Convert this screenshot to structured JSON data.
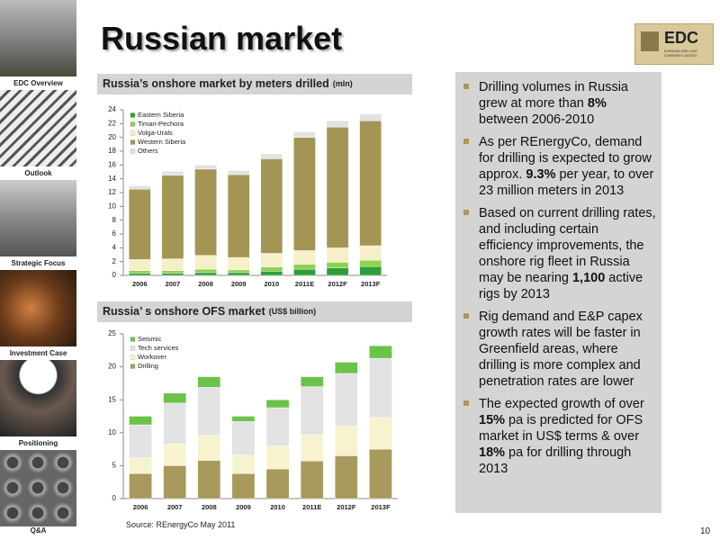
{
  "sidebar": [
    "EDC Overview",
    "Outlook",
    "Strategic Focus",
    "Investment Case",
    "Positioning",
    "Q&A"
  ],
  "title": "Russian market",
  "logo": {
    "name": "EDC",
    "tagline": "EURASIA DRILLING COMPANY LIMITED"
  },
  "chart_data": [
    {
      "type": "stacked_bar",
      "title": "Russia’s onshore market by meters drilled",
      "unit": "(mln)",
      "categories": [
        "2006",
        "2007",
        "2008",
        "2009",
        "2010",
        "2011E",
        "2012F",
        "2013F"
      ],
      "series": [
        {
          "name": "Eastern Siberia",
          "color": "#2e9e3a",
          "values": [
            0.3,
            0.3,
            0.4,
            0.4,
            0.6,
            0.9,
            1.1,
            1.3
          ]
        },
        {
          "name": "Timan-Pechora",
          "color": "#8fd14f",
          "values": [
            0.4,
            0.4,
            0.5,
            0.4,
            0.6,
            0.7,
            0.8,
            0.9
          ]
        },
        {
          "name": "Volga-Urals",
          "color": "#f5f0c8",
          "values": [
            1.6,
            1.7,
            2.0,
            1.8,
            2.0,
            2.0,
            2.1,
            2.1
          ]
        },
        {
          "name": "Western Siberia",
          "color": "#a39554",
          "values": [
            10.2,
            12.1,
            12.5,
            12.0,
            13.7,
            16.4,
            17.5,
            18.1
          ]
        },
        {
          "name": "Others",
          "color": "#e2e2e2",
          "values": [
            0.5,
            0.6,
            0.6,
            0.6,
            0.7,
            0.8,
            0.9,
            1.0
          ]
        }
      ],
      "ylim": [
        0,
        24
      ],
      "yticks": [
        0,
        2,
        4,
        6,
        8,
        10,
        12,
        14,
        16,
        18,
        20,
        22,
        24
      ],
      "legend": "upper left",
      "legend_reversed": false
    },
    {
      "type": "stacked_bar",
      "title": "Russia’ s onshore OFS market",
      "unit": "(US$ billion)",
      "categories": [
        "2006",
        "2007",
        "2008",
        "2009",
        "2010",
        "2011E",
        "2012F",
        "2013F"
      ],
      "series": [
        {
          "name": "Drilling",
          "color": "#a89a5c",
          "values": [
            3.8,
            5.0,
            5.8,
            3.8,
            4.5,
            5.7,
            6.5,
            7.5
          ]
        },
        {
          "name": "Workover",
          "color": "#f7f3cf",
          "values": [
            2.4,
            3.3,
            3.8,
            2.8,
            3.5,
            4.0,
            4.5,
            4.8
          ]
        },
        {
          "name": "Tech services",
          "color": "#e3e3e3",
          "values": [
            5.0,
            6.2,
            7.3,
            5.1,
            5.8,
            7.3,
            8.0,
            9.0
          ]
        },
        {
          "name": "Seismic",
          "color": "#6cc24a",
          "values": [
            1.3,
            1.5,
            1.6,
            0.8,
            1.2,
            1.5,
            1.7,
            1.9
          ]
        }
      ],
      "ylim": [
        0,
        25
      ],
      "yticks": [
        0,
        5,
        10,
        15,
        20,
        25
      ],
      "legend": "upper left",
      "legend_reversed": true
    }
  ],
  "source": "Source: REnergyCo May 2011",
  "bullets": [
    [
      {
        "text": "Drilling volumes in Russia grew at more than ",
        "bold": false
      },
      {
        "text": "8%",
        "bold": true
      },
      {
        "text": " between 2006-2010",
        "bold": false
      }
    ],
    [
      {
        "text": "As per REnergyCo, demand for drilling is expected to grow approx. ",
        "bold": false
      },
      {
        "text": "9.3%",
        "bold": true
      },
      {
        "text": " per year, to over 23 million meters in 2013",
        "bold": false
      }
    ],
    [
      {
        "text": "Based on current drilling rates, and including certain efficiency improvements, the onshore rig fleet in Russia may be nearing ",
        "bold": false
      },
      {
        "text": "1,100",
        "bold": true
      },
      {
        "text": " active rigs by 2013",
        "bold": false
      }
    ],
    [
      {
        "text": "Rig demand and E&P capex growth rates will be faster in Greenfield areas, where drilling is more complex and penetration rates are lower",
        "bold": false
      }
    ],
    [
      {
        "text": "The expected growth of over ",
        "bold": false
      },
      {
        "text": "15%",
        "bold": true
      },
      {
        "text": " pa is predicted for OFS market in US$ terms & over ",
        "bold": false
      },
      {
        "text": "18%",
        "bold": true
      },
      {
        "text": " pa for drilling through 2013",
        "bold": false
      }
    ]
  ],
  "page_number": "10"
}
